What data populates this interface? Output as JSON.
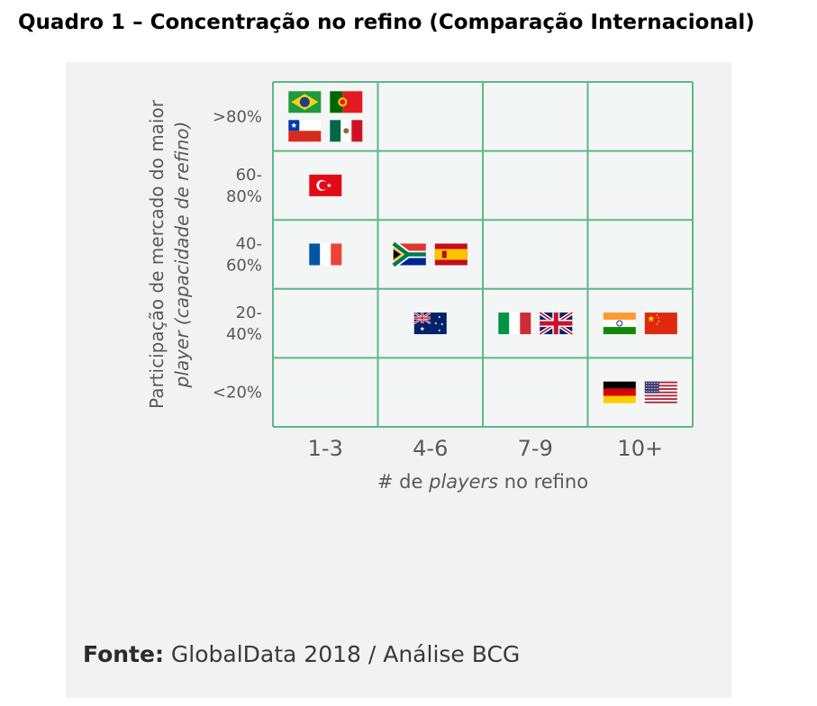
{
  "title": "Quadro 1 – Concentração no refino (Comparação Internacional)",
  "source": {
    "label": "Fonte:",
    "text": "GlobalData 2018 / Análise BCG"
  },
  "colors": {
    "grid": "#5cb88a",
    "cell": "#f4f5f5",
    "panel": "#f2f2f2",
    "label": "#595959"
  },
  "chart_data": {
    "type": "table",
    "xlabel_parts": [
      {
        "text": "# de ",
        "italic": false
      },
      {
        "text": "players",
        "italic": true
      },
      {
        "text": " no refino",
        "italic": false
      }
    ],
    "ylabel_lines": [
      [
        {
          "text": "Participação de mercado do maior",
          "italic": false
        }
      ],
      [
        {
          "text": "player (capacidade de refino)",
          "italic": true
        }
      ]
    ],
    "columns": [
      "1-3",
      "4-6",
      "7-9",
      "10+"
    ],
    "rows": [
      ">80%",
      "60-80%",
      "40-60%",
      "20-40%",
      "<20%"
    ],
    "row_labels": [
      [
        ">80%"
      ],
      [
        "60-",
        "80%"
      ],
      [
        "40-",
        "60%"
      ],
      [
        "20-",
        "40%"
      ],
      [
        "<20%"
      ]
    ],
    "cells": [
      {
        "row": ">80%",
        "col": "1-3",
        "countries": [
          "brazil",
          "portugal",
          "chile",
          "mexico"
        ]
      },
      {
        "row": "60-80%",
        "col": "1-3",
        "countries": [
          "turkey"
        ]
      },
      {
        "row": "40-60%",
        "col": "1-3",
        "countries": [
          "france"
        ]
      },
      {
        "row": "40-60%",
        "col": "4-6",
        "countries": [
          "south-africa",
          "spain"
        ]
      },
      {
        "row": "20-40%",
        "col": "4-6",
        "countries": [
          "australia"
        ]
      },
      {
        "row": "20-40%",
        "col": "7-9",
        "countries": [
          "italy",
          "united-kingdom"
        ]
      },
      {
        "row": "20-40%",
        "col": "10+",
        "countries": [
          "india",
          "china"
        ]
      },
      {
        "row": "<20%",
        "col": "10+",
        "countries": [
          "germany",
          "united-states"
        ]
      }
    ]
  }
}
